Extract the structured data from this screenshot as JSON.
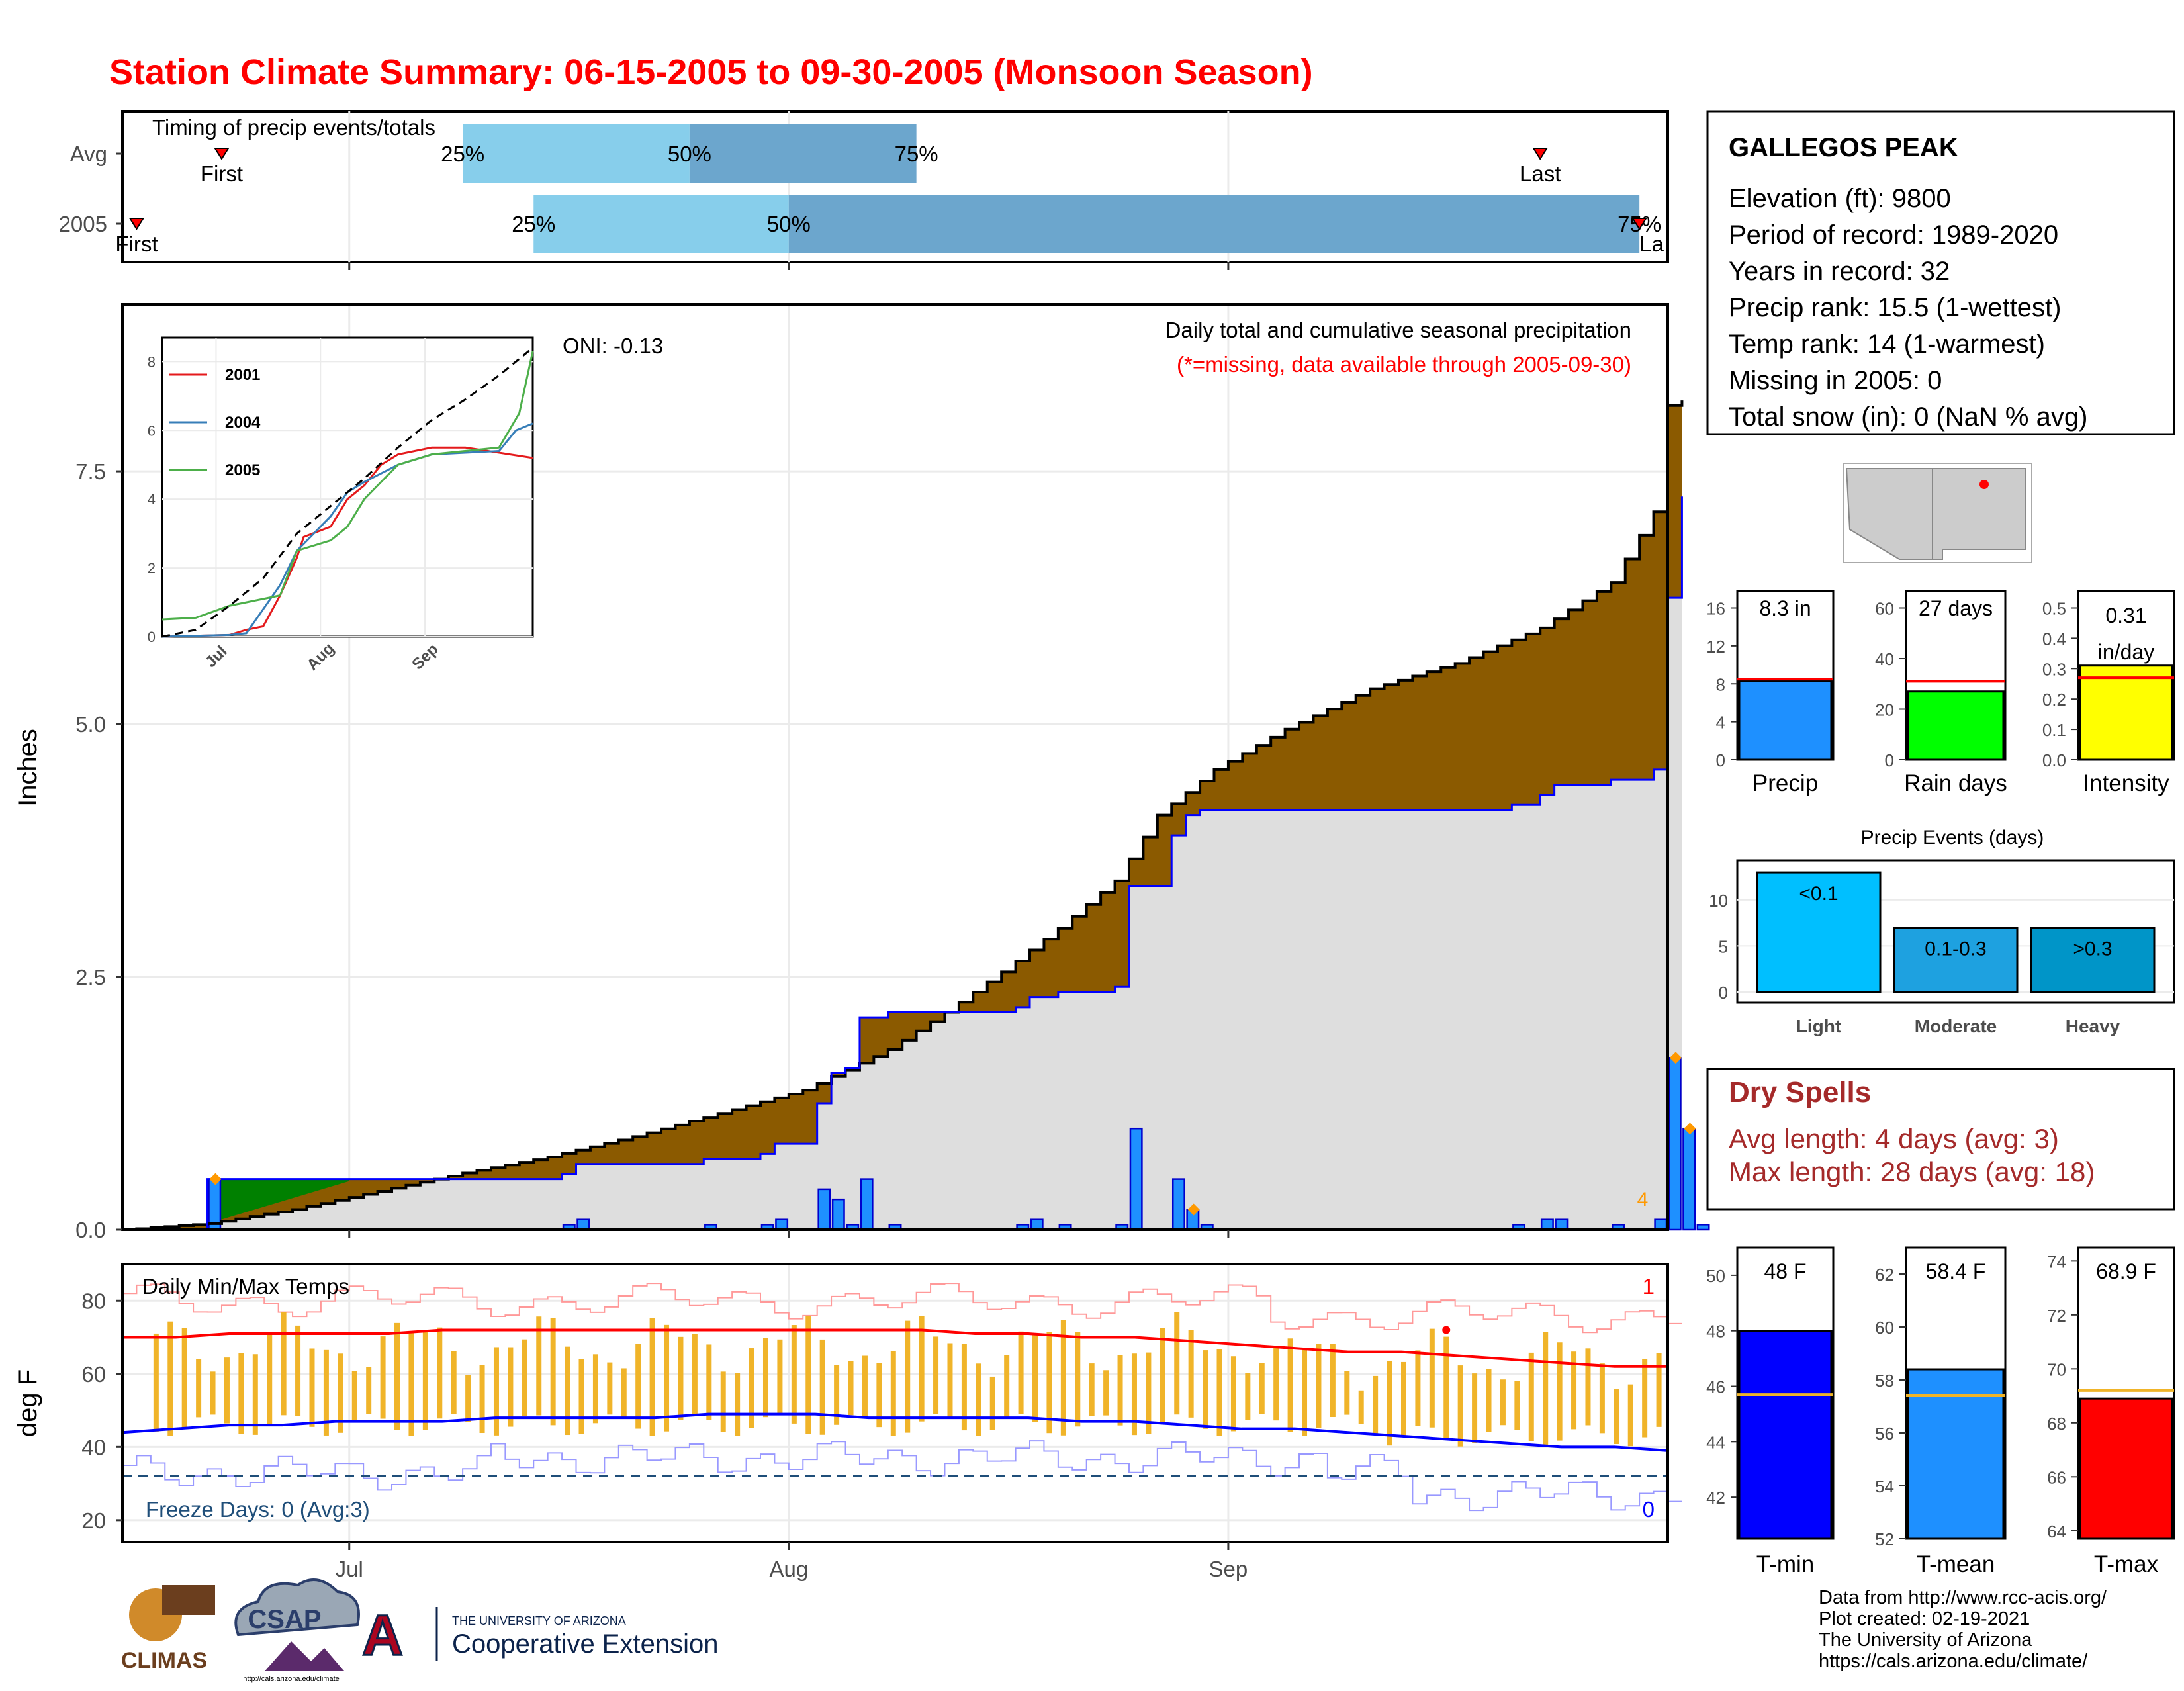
{
  "title": "Station Climate Summary: 06-15-2005 to 09-30-2005 (Monsoon Season)",
  "station": {
    "name": "GALLEGOS PEAK",
    "lines": [
      "Elevation (ft): 9800",
      "Period of record: 1989-2020",
      "Years in record: 32",
      "Precip rank: 15.5 (1-wettest)",
      "Temp rank: 14 (1-warmest)",
      "Missing in 2005: 0",
      "Total snow (in): 0 (NaN % avg)"
    ]
  },
  "month_labels": [
    "Jul",
    "Aug",
    "Sep"
  ],
  "timing": {
    "title": "Timing of precip events/totals",
    "rows": [
      "Avg",
      "2005"
    ],
    "avg": {
      "first_label": "First",
      "last_label": "Last",
      "first_day": 7,
      "last_day": 100,
      "q25_day": 24,
      "q50_day": 40,
      "q75_day": 56,
      "q25_label": "25%",
      "q50_label": "50%",
      "q75_label": "75%"
    },
    "y2005": {
      "first_label": "First",
      "last_label": "Last",
      "first_day": 1,
      "last_day": 107,
      "q25_day": 29,
      "q50_day": 47,
      "q75_day": 107,
      "q25_label": "25%",
      "q50_label": "50%",
      "q75_label": "75%"
    }
  },
  "precip_panel": {
    "ylabel": "Inches",
    "yticks": [
      "0.0",
      "2.5",
      "5.0",
      "7.5"
    ],
    "ylim": [
      0,
      9
    ],
    "oni": "ONI: -0.13",
    "caption": "Daily total and cumulative seasonal precipitation",
    "missing_note": "(*=missing, data available through 2005-09-30)",
    "corner_count": "4",
    "inset": {
      "yticks": [
        "0",
        "2",
        "4",
        "6",
        "8"
      ],
      "xticks": [
        "Jul",
        "Aug",
        "Sep"
      ],
      "legend": [
        "2001",
        "2004",
        "2005"
      ],
      "colors": [
        "#e41a1c",
        "#377eb8",
        "#4daf4a"
      ]
    }
  },
  "temp_panel": {
    "ylabel": "deg F",
    "title": "Daily Min/Max Temps",
    "yticks": [
      "20",
      "40",
      "60",
      "80"
    ],
    "freeze": "Freeze Days: 0 (Avg:3)",
    "count_max": "1",
    "count_min": "0"
  },
  "bar_summaries": [
    {
      "label": "Precip",
      "value_text": "8.3 in",
      "value": 8.3,
      "avg": 8.5,
      "ticks": [
        "0",
        "4",
        "8",
        "12",
        "16"
      ],
      "ylim": [
        0,
        16
      ],
      "color": "#1e90ff"
    },
    {
      "label": "Rain days",
      "value_text": "27 days",
      "value": 27,
      "avg": 31,
      "ticks": [
        "0",
        "20",
        "40",
        "60"
      ],
      "ylim": [
        0,
        60
      ],
      "color": "#00ff00"
    },
    {
      "label": "Intensity",
      "value_text": "0.31\nin/day",
      "value": 0.31,
      "avg": 0.27,
      "ticks": [
        "0.0",
        "0.1",
        "0.2",
        "0.3",
        "0.4",
        "0.5"
      ],
      "ylim": [
        0,
        0.5
      ],
      "color": "#ffff00"
    }
  ],
  "events": {
    "title": "Precip Events (days)",
    "categories": [
      "Light",
      "Moderate",
      "Heavy"
    ],
    "labels": [
      "<0.1",
      "0.1-0.3",
      ">0.3"
    ],
    "values": [
      13,
      7,
      7
    ],
    "ticks": [
      "0",
      "5",
      "10"
    ],
    "colors": [
      "#00bfff",
      "#1ea1e0",
      "#0095c8"
    ]
  },
  "dry_spells": {
    "title": "Dry Spells",
    "avg_length": "Avg length: 4 days (avg: 3)",
    "max_length": "Max length: 28 days (avg: 18)"
  },
  "temp_bars": [
    {
      "label": "T-min",
      "value_text": "48 F",
      "value": 48,
      "avg": 45.7,
      "ticks": [
        "42",
        "44",
        "46",
        "48",
        "50"
      ],
      "ylim": [
        40.5,
        51
      ],
      "color": "#0000ff"
    },
    {
      "label": "T-mean",
      "value_text": "58.4 F",
      "value": 58.4,
      "avg": 57.4,
      "ticks": [
        "52",
        "54",
        "56",
        "58",
        "60",
        "62"
      ],
      "ylim": [
        52,
        63
      ],
      "color": "#1e90ff"
    },
    {
      "label": "T-max",
      "value_text": "68.9 F",
      "value": 68.9,
      "avg": 69.2,
      "ticks": [
        "64",
        "66",
        "68",
        "70",
        "72",
        "74"
      ],
      "ylim": [
        63.7,
        74.5
      ],
      "color": "#ff0000"
    }
  ],
  "credits": {
    "lines": [
      "Data from http://www.rcc-acis.org/",
      "Plot created: 02-19-2021",
      "The University of Arizona",
      "https://cals.arizona.edu/climate/"
    ],
    "climas": "CLIMAS",
    "csap": "CSAP",
    "csap_url": "http://cals.arizona.edu/climate",
    "ua_small": "THE UNIVERSITY OF ARIZONA",
    "ua_big": "Cooperative Extension"
  },
  "chart_data": [
    {
      "type": "area",
      "title": "Daily total and cumulative seasonal precipitation",
      "ylabel": "Inches",
      "x_unit": "days since 06-15",
      "ylim": [
        0,
        9
      ],
      "cumulative_avg": [
        [
          0,
          0
        ],
        [
          10,
          0.12
        ],
        [
          20,
          0.45
        ],
        [
          30,
          0.68
        ],
        [
          40,
          1.05
        ],
        [
          50,
          1.55
        ],
        [
          60,
          2.35
        ],
        [
          70,
          3.3
        ],
        [
          75,
          4.0
        ],
        [
          80,
          4.7
        ],
        [
          90,
          5.3
        ],
        [
          100,
          5.85
        ],
        [
          108,
          6.5
        ],
        [
          104,
          8.3
        ]
      ],
      "cumulative_2005": [
        [
          0,
          0
        ],
        [
          8,
          0.55
        ],
        [
          20,
          0.5
        ],
        [
          28,
          0.75
        ],
        [
          48,
          1.1
        ],
        [
          55,
          2.4
        ],
        [
          60,
          2.8
        ],
        [
          72,
          3.1
        ],
        [
          75,
          4.0
        ],
        [
          80,
          4.85
        ],
        [
          100,
          4.85
        ],
        [
          108,
          8.3
        ]
      ],
      "daily_2005": [
        [
          6,
          0.5
        ],
        [
          31,
          0.05
        ],
        [
          32,
          0.1
        ],
        [
          41,
          0.05
        ],
        [
          45,
          0.05
        ],
        [
          46,
          0.1
        ],
        [
          49,
          0.4
        ],
        [
          50,
          0.3
        ],
        [
          51,
          0.05
        ],
        [
          52,
          0.5
        ],
        [
          54,
          0.05
        ],
        [
          63,
          0.05
        ],
        [
          64,
          0.1
        ],
        [
          66,
          0.05
        ],
        [
          70,
          0.05
        ],
        [
          71,
          1.0
        ],
        [
          74,
          0.5
        ],
        [
          75,
          0.2
        ],
        [
          76,
          0.05
        ],
        [
          98,
          0.05
        ],
        [
          100,
          0.1
        ],
        [
          101,
          0.1
        ],
        [
          105,
          0.05
        ],
        [
          108,
          0.1
        ],
        [
          109,
          1.7
        ],
        [
          110,
          1.0
        ],
        [
          111,
          0.05
        ]
      ]
    },
    {
      "type": "line",
      "title": "Daily Min/Max Temps",
      "ylabel": "deg F",
      "series": [
        {
          "name": "max_avg",
          "values": [
            70,
            70,
            71,
            71,
            71,
            71,
            72,
            72,
            72,
            72,
            72,
            72,
            72,
            72,
            72,
            72,
            71,
            71,
            70,
            70,
            69,
            68,
            67,
            66,
            66,
            65,
            64,
            63,
            62,
            62
          ]
        },
        {
          "name": "min_avg",
          "values": [
            44,
            45,
            46,
            46,
            47,
            47,
            47,
            48,
            48,
            48,
            48,
            49,
            49,
            49,
            48,
            48,
            48,
            48,
            47,
            47,
            46,
            45,
            45,
            44,
            43,
            42,
            41,
            40,
            40,
            39
          ]
        }
      ]
    }
  ]
}
